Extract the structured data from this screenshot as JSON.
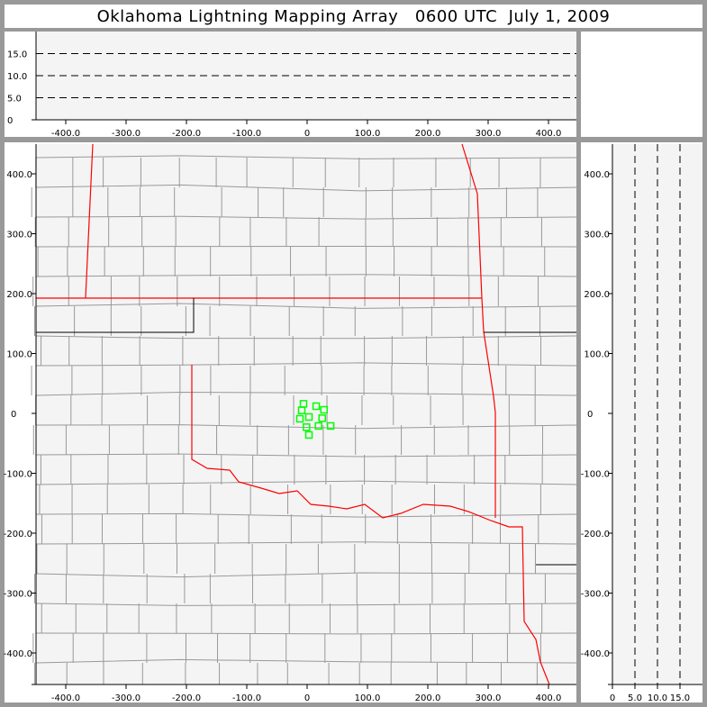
{
  "title": "Oklahoma Lightning Mapping Array   0600 UTC  July 1, 2009",
  "colors": {
    "background": "#999999",
    "plot": "#f4f4f4",
    "state_border": "#ff0000",
    "county_border": "#999999",
    "source": "#00ff00"
  },
  "top_panel": {
    "x_ticks": [
      "-400.0",
      "-300.0",
      "-200.0",
      "-100.0",
      "0",
      "100.0",
      "200.0",
      "300.0",
      "400.0"
    ],
    "x_values": [
      -400,
      -300,
      -200,
      -100,
      0,
      100,
      200,
      300,
      400
    ],
    "alt_ticks": [
      "0",
      "5.0",
      "10.0",
      "15.0"
    ],
    "alt_values": [
      0,
      5,
      10,
      15
    ]
  },
  "map_panel": {
    "x_ticks": [
      "-400.0",
      "-300.0",
      "-200.0",
      "-100.0",
      "0",
      "100.0",
      "200.0",
      "300.0",
      "400.0"
    ],
    "x_values": [
      -400,
      -300,
      -200,
      -100,
      0,
      100,
      200,
      300,
      400
    ],
    "y_ticks": [
      "400.0",
      "300.0",
      "200.0",
      "100.0",
      "0",
      "-100.0",
      "-200.0",
      "-300.0",
      "-400.0"
    ],
    "y_values": [
      400,
      300,
      200,
      100,
      0,
      -100,
      -200,
      -300,
      -400
    ],
    "range_km": [
      -450,
      450
    ],
    "sources_km": [
      [
        -6,
        16
      ],
      [
        15,
        12
      ],
      [
        28,
        6
      ],
      [
        -9,
        5
      ],
      [
        3,
        -6
      ],
      [
        -12,
        -9
      ],
      [
        25,
        -8
      ],
      [
        -1,
        -23
      ],
      [
        19,
        -21
      ],
      [
        39,
        -21
      ],
      [
        3,
        -36
      ]
    ]
  },
  "right_panel": {
    "alt_ticks": [
      "0",
      "5.0",
      "10.0",
      "15.0"
    ],
    "alt_values": [
      0,
      5,
      10,
      15
    ],
    "y_ticks": [
      "400.0",
      "300.0",
      "200.0",
      "100.0",
      "0",
      "-100.0",
      "-200.0",
      "-300.0",
      "-400.0"
    ]
  }
}
